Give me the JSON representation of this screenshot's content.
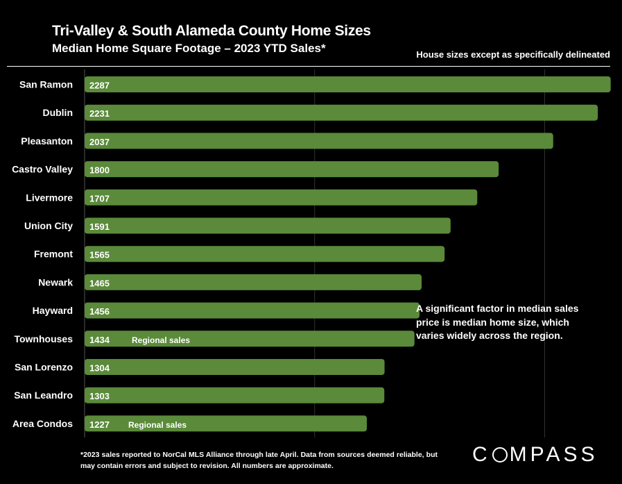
{
  "page": {
    "note": "House sizes except as specifically delineated",
    "annotation": "A significant factor in median sales price is median home size, which varies widely across the region.",
    "footnote": "*2023 sales reported to NorCal MLS Alliance through late April. Data from sources deemed reliable, but may contain errors and subject to revision. All numbers are approximate.",
    "logo_pre": "C",
    "logo_post": "MPASS"
  },
  "colors": {
    "bar": "#5a8a3a",
    "background": "#000000",
    "text": "#ffffff",
    "grid": "#333333"
  },
  "chart_data": {
    "type": "bar",
    "orientation": "horizontal",
    "title": "Tri-Valley & South Alameda County Home Sizes",
    "subtitle": "Median Home Square Footage – 2023 YTD Sales*",
    "categories": [
      "San Ramon",
      "Dublin",
      "Pleasanton",
      "Castro Valley",
      "Livermore",
      "Union City",
      "Fremont",
      "Newark",
      "Hayward",
      "Townhouses",
      "San Lorenzo",
      "San Leandro",
      "Area Condos"
    ],
    "values": [
      2287,
      2231,
      2037,
      1800,
      1707,
      1591,
      1565,
      1465,
      1456,
      1434,
      1304,
      1303,
      1227
    ],
    "bar_notes": [
      "",
      "",
      "",
      "",
      "",
      "",
      "",
      "",
      "",
      "Regional sales",
      "",
      "",
      "Regional sales"
    ],
    "xlim": [
      0,
      2300
    ],
    "grid": true
  }
}
